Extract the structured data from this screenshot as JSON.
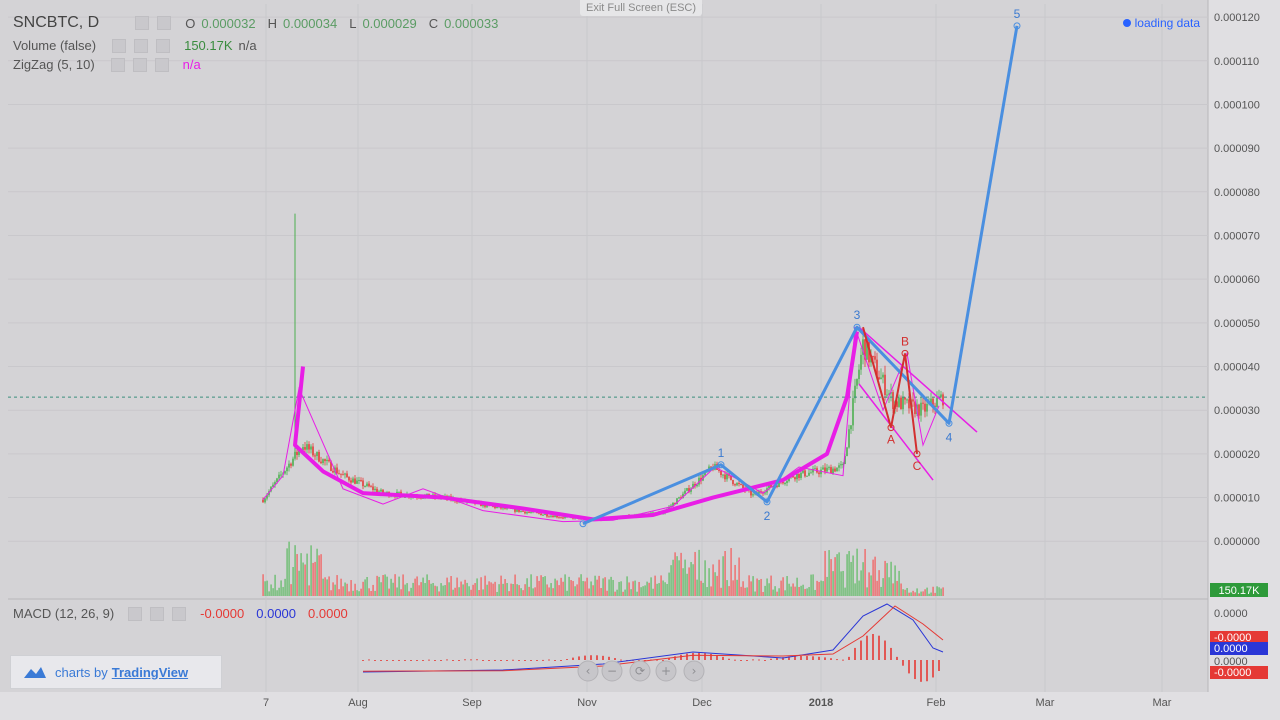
{
  "legend": {
    "symbol": "SNCBTC, D",
    "ohlc": {
      "o_label": "O",
      "o": "0.000032",
      "h_label": "H",
      "h": "0.000034",
      "l_label": "L",
      "l": "0.000029",
      "c_label": "C",
      "c": "0.000033"
    },
    "volume": {
      "label": "Volume (false)",
      "value": "150.17K",
      "extra": "n/a"
    },
    "zigzag": {
      "label": "ZigZag (5, 10)",
      "value": "n/a"
    },
    "macd": {
      "label": "MACD (12, 26, 9)",
      "v1": "-0.0000",
      "v2": "0.0000",
      "v3": "0.0000"
    }
  },
  "overlay": {
    "exit_fullscreen": "Exit Full Screen (ESC)",
    "loading": "loading data"
  },
  "branding": {
    "prefix": "charts by",
    "name": "TradingView"
  },
  "colors": {
    "bg": "#d4d3d6",
    "up": "#4caf50",
    "down": "#e53935",
    "wave": "#4a8fe0",
    "zigzag": "#e81ee6",
    "macd": "#2a36d6",
    "signal": "#e53935"
  },
  "chart_data": {
    "type": "candlestick",
    "symbol": "SNCBTC",
    "interval": "D",
    "y_axis": {
      "ticks": [
        "0.000120",
        "0.000110",
        "0.000100",
        "0.000090",
        "0.000080",
        "0.000070",
        "0.000060",
        "0.000050",
        "0.000040",
        "0.000030",
        "0.000020",
        "0.000010",
        "0.000000"
      ],
      "min": -1.3e-05,
      "max": 0.000123
    },
    "x_axis": {
      "ticks": [
        "7",
        "Aug",
        "Sep",
        "Nov",
        "Dec",
        "2018",
        "Feb",
        "Mar",
        "Mar"
      ]
    },
    "price_line": 3.3e-05,
    "last_volume_label": "150.17K",
    "close_path": [
      {
        "d": 0,
        "v": 9.5e-06
      },
      {
        "d": 20,
        "v": 2.2e-05
      },
      {
        "d": 40,
        "v": 1.5e-05
      },
      {
        "d": 60,
        "v": 1.1e-05
      },
      {
        "d": 90,
        "v": 1e-05
      },
      {
        "d": 120,
        "v": 7.5e-06
      },
      {
        "d": 150,
        "v": 5.5e-06
      },
      {
        "d": 170,
        "v": 5e-06
      },
      {
        "d": 200,
        "v": 6.5e-06
      },
      {
        "d": 225,
        "v": 1.7e-05
      },
      {
        "d": 245,
        "v": 1.05e-05
      },
      {
        "d": 265,
        "v": 1.5e-05
      },
      {
        "d": 290,
        "v": 1.7e-05
      },
      {
        "d": 300,
        "v": 4.5e-05
      },
      {
        "d": 315,
        "v": 3.2e-05
      },
      {
        "d": 330,
        "v": 3e-05
      },
      {
        "d": 340,
        "v": 3.3e-05
      }
    ],
    "elliott_wave": {
      "points": [
        {
          "d": 160,
          "v": 4e-06,
          "label": ""
        },
        {
          "d": 229,
          "v": 1.75e-05,
          "label": "1"
        },
        {
          "d": 252,
          "v": 9e-06,
          "label": "2"
        },
        {
          "d": 297,
          "v": 4.9e-05,
          "label": "3"
        },
        {
          "d": 343,
          "v": 2.7e-05,
          "label": "4"
        },
        {
          "d": 377,
          "v": 0.000118,
          "label": "5"
        }
      ]
    },
    "abc_correction": {
      "points": [
        {
          "d": 300,
          "v": 4.9e-05,
          "label": ""
        },
        {
          "d": 314,
          "v": 2.6e-05,
          "label": "A"
        },
        {
          "d": 321,
          "v": 4.3e-05,
          "label": "B"
        },
        {
          "d": 327,
          "v": 2e-05,
          "label": "C"
        }
      ]
    },
    "macd": {
      "ticks": [
        "0.0000",
        "0.0000",
        "-0.0000"
      ],
      "labels": [
        "-0.0000",
        "0.0000",
        "-0.0000"
      ]
    }
  }
}
